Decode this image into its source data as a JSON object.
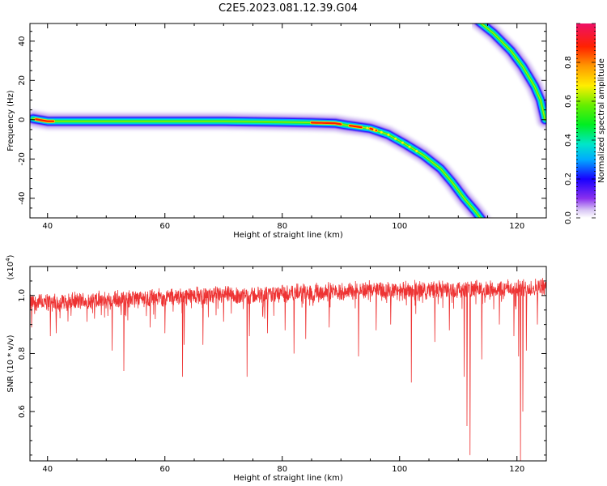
{
  "figure": {
    "title": "C2E5.2023.081.12.39.G04"
  },
  "chart_data": [
    {
      "type": "heatmap",
      "xlabel": "Height of straight line (km)",
      "ylabel": "Frequency (Hz)",
      "xlim": [
        37,
        125
      ],
      "ylim": [
        -50,
        49
      ],
      "xticks": [
        "40",
        "60",
        "80",
        "100",
        "120"
      ],
      "yticks": [
        "40",
        "20",
        "0",
        "-20",
        "-40"
      ],
      "ridges": [
        {
          "name": "",
          "points": [
            [
              37.5,
              0.5
            ],
            [
              40,
              -0.8
            ],
            [
              50,
              -0.8
            ],
            [
              60,
              -0.8
            ],
            [
              70,
              -0.8
            ],
            [
              80,
              -1.2
            ],
            [
              85,
              -1.5
            ],
            [
              89,
              -1.8
            ],
            [
              91,
              -2.8
            ],
            [
              95,
              -4.5
            ],
            [
              98,
              -7.5
            ],
            [
              101,
              -12.5
            ],
            [
              104,
              -18
            ],
            [
              107,
              -25
            ],
            [
              109,
              -32
            ],
            [
              111,
              -40
            ],
            [
              113,
              -47
            ],
            [
              114,
              -51
            ]
          ],
          "peak": [
            [
              38,
              41
            ],
            [
              85,
              90
            ],
            [
              91.5,
              93.5
            ],
            [
              95,
              96
            ]
          ]
        },
        {
          "name": "",
          "points": [
            [
              113.5,
              50
            ],
            [
              116,
              44
            ],
            [
              119,
              35
            ],
            [
              121,
              27
            ],
            [
              123,
              17
            ],
            [
              124,
              10
            ],
            [
              124.8,
              0
            ]
          ],
          "peak": []
        }
      ],
      "colorbar": {
        "label": "Normalized spectral amplitude",
        "ticks": [
          "0.0",
          "0.2",
          "0.4",
          "0.6",
          "0.8"
        ],
        "range": [
          0,
          1
        ]
      }
    },
    {
      "type": "line",
      "xlabel": "Height of straight line (km)",
      "ylabel": "SNR (10 * v/v)",
      "exponent_label": "(x10",
      "exponent_power": "4",
      "exponent_close": ")",
      "xlim": [
        37,
        125
      ],
      "ylim": [
        0.43,
        1.1
      ],
      "xticks": [
        "40",
        "60",
        "80",
        "100",
        "120"
      ],
      "yticks": [
        "1.0",
        "0.8",
        "0.6"
      ],
      "series": [
        {
          "name": "",
          "color": "#ee3333",
          "baseline": {
            "x": [
              37,
              45,
              55,
              65,
              75,
              85,
              95,
              105,
              115,
              125
            ],
            "y": [
              0.975,
              0.98,
              0.99,
              1.0,
              1.0,
              1.01,
              1.02,
              1.02,
              1.02,
              1.03
            ]
          },
          "noise": 0.03,
          "dips": [
            {
              "x": 37.3,
              "y": 0.89
            },
            {
              "x": 40.5,
              "y": 0.86
            },
            {
              "x": 41.5,
              "y": 0.87
            },
            {
              "x": 44.0,
              "y": 0.93
            },
            {
              "x": 48.0,
              "y": 0.92
            },
            {
              "x": 51.0,
              "y": 0.81
            },
            {
              "x": 53.0,
              "y": 0.74
            },
            {
              "x": 57.5,
              "y": 0.89
            },
            {
              "x": 60.0,
              "y": 0.87
            },
            {
              "x": 63.0,
              "y": 0.72
            },
            {
              "x": 63.3,
              "y": 0.83
            },
            {
              "x": 66.5,
              "y": 0.83
            },
            {
              "x": 70.0,
              "y": 0.91
            },
            {
              "x": 74.0,
              "y": 0.72
            },
            {
              "x": 74.4,
              "y": 0.86
            },
            {
              "x": 77.5,
              "y": 0.87
            },
            {
              "x": 80.5,
              "y": 0.88
            },
            {
              "x": 82.0,
              "y": 0.8
            },
            {
              "x": 84.0,
              "y": 0.85
            },
            {
              "x": 88.0,
              "y": 0.89
            },
            {
              "x": 93.0,
              "y": 0.79
            },
            {
              "x": 96.0,
              "y": 0.88
            },
            {
              "x": 98.5,
              "y": 0.9
            },
            {
              "x": 102.0,
              "y": 0.7
            },
            {
              "x": 106.0,
              "y": 0.84
            },
            {
              "x": 108.5,
              "y": 0.88
            },
            {
              "x": 111.0,
              "y": 0.72
            },
            {
              "x": 111.5,
              "y": 0.55
            },
            {
              "x": 112.0,
              "y": 0.45
            },
            {
              "x": 114.0,
              "y": 0.78
            },
            {
              "x": 117.0,
              "y": 0.9
            },
            {
              "x": 119.5,
              "y": 0.86
            },
            {
              "x": 120.3,
              "y": 0.79
            },
            {
              "x": 120.6,
              "y": 0.43
            },
            {
              "x": 121.0,
              "y": 0.6
            },
            {
              "x": 121.6,
              "y": 0.81
            },
            {
              "x": 123.5,
              "y": 0.9
            }
          ]
        }
      ]
    }
  ]
}
